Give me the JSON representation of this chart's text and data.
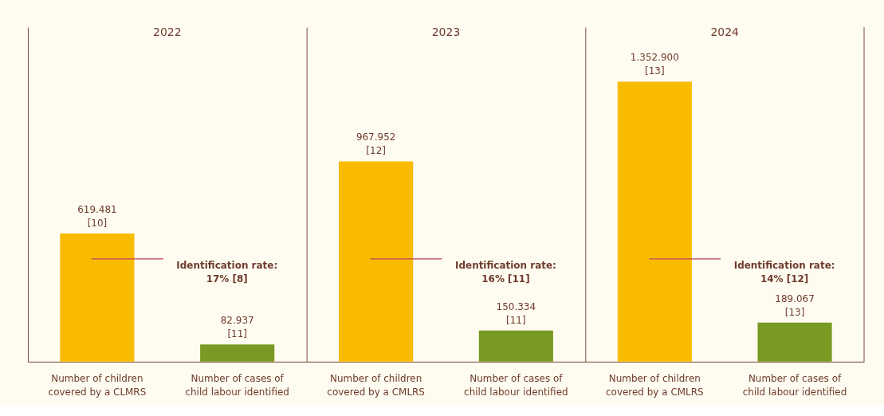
{
  "chart_data": [
    {
      "type": "bar",
      "title": "2022",
      "categories": [
        "Number of children covered by a CLMRS",
        "Number of cases of child labour identified"
      ],
      "values": [
        619481,
        82937
      ],
      "colors": [
        "#f9bb00",
        "#789a22"
      ],
      "value_labels": [
        "619.481\n[10]",
        "82.937\n[11]"
      ],
      "annotations": [
        "Identification rate:\n17% [8]"
      ]
    },
    {
      "type": "bar",
      "title": "2023",
      "categories": [
        "Number of children covered by a CMLRS",
        "Number of cases of child labour identified"
      ],
      "values": [
        967952,
        150334
      ],
      "colors": [
        "#f9bb00",
        "#789a22"
      ],
      "value_labels": [
        "967.952\n[12]",
        "150.334\n[11]"
      ],
      "annotations": [
        "Identification rate:\n16% [11]"
      ]
    },
    {
      "type": "bar",
      "title": "2024",
      "categories": [
        "Number of children covered by a CMLRS",
        "Number of cases of child labour identified"
      ],
      "values": [
        1352900,
        189067
      ],
      "colors": [
        "#f9bb00",
        "#789a22"
      ],
      "value_labels": [
        "1.352.900\n[13]",
        "189.067\n[13]"
      ],
      "annotations": [
        "Identification rate:\n14% [12]"
      ]
    }
  ]
}
